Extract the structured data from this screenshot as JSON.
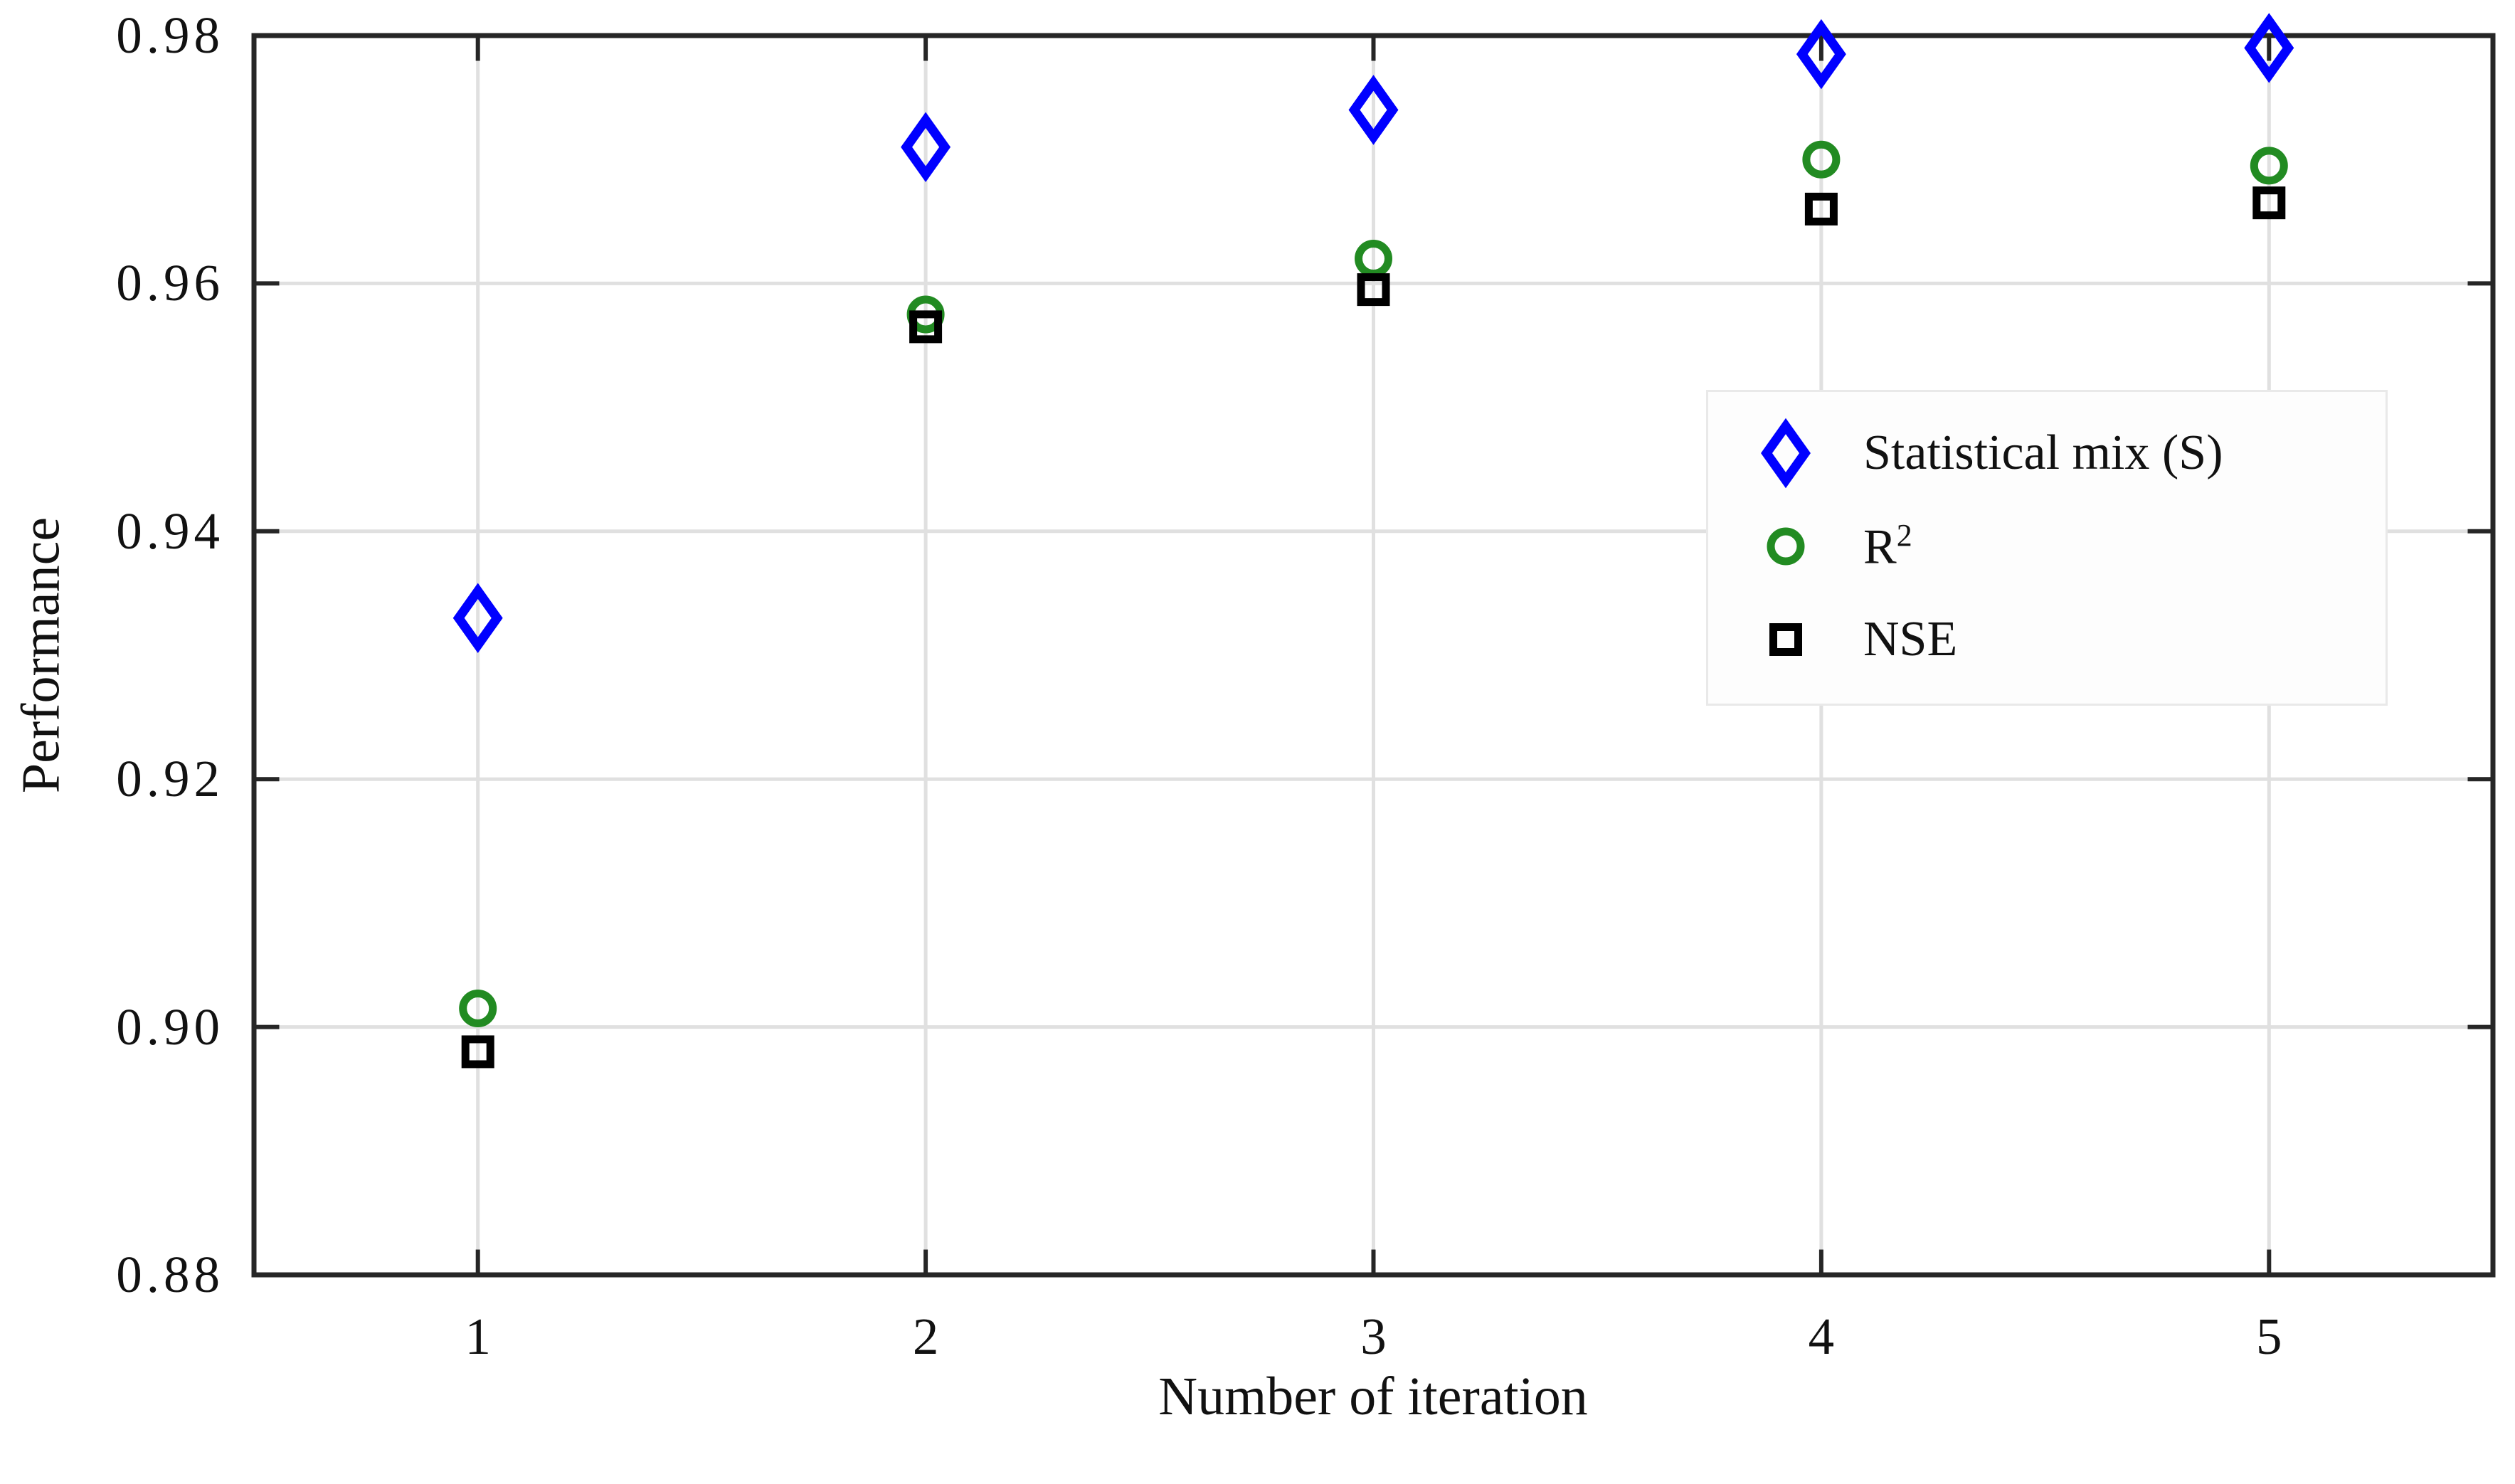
{
  "chart_data": {
    "type": "scatter",
    "title": "",
    "xlabel": "Number of iteration",
    "ylabel": "Performance",
    "x": [
      1,
      2,
      3,
      4,
      5
    ],
    "xticks": [
      1,
      2,
      3,
      4,
      5
    ],
    "xtick_labels": [
      "1",
      "2",
      "3",
      "4",
      "5"
    ],
    "yticks": [
      0.88,
      0.9,
      0.92,
      0.94,
      0.96,
      0.98
    ],
    "ytick_labels": [
      "0.88",
      "0.90",
      "0.92",
      "0.94",
      "0.96",
      "0.98"
    ],
    "xlim": [
      0.5,
      5.5
    ],
    "ylim": [
      0.88,
      0.98
    ],
    "grid": true,
    "legend_position": "upper-right-inside",
    "series": [
      {
        "name": "Statistical mix (S)",
        "marker": "thin-diamond",
        "color": "#0000ff",
        "values": [
          0.933,
          0.971,
          0.974,
          0.9785,
          0.979
        ]
      },
      {
        "name": "R2",
        "marker": "circle",
        "color": "#228b22",
        "values": [
          0.9015,
          0.9575,
          0.962,
          0.97,
          0.9695
        ]
      },
      {
        "name": "NSE",
        "marker": "square",
        "color": "#000000",
        "values": [
          0.898,
          0.9565,
          0.9595,
          0.966,
          0.9665
        ]
      }
    ],
    "legend": {
      "items": [
        {
          "label": "Statistical mix (S)",
          "sup": "",
          "marker": "thin-diamond",
          "color": "#0000ff"
        },
        {
          "label": "R",
          "sup": "2",
          "marker": "circle",
          "color": "#228b22"
        },
        {
          "label": "NSE",
          "sup": "",
          "marker": "square",
          "color": "#000000"
        }
      ]
    },
    "colors": {
      "spine": "#262626",
      "grid": "#e0e0e0",
      "tick_label": "#111111",
      "legend_border": "#e9e9e9",
      "legend_bg": "#fdfdfd"
    }
  }
}
